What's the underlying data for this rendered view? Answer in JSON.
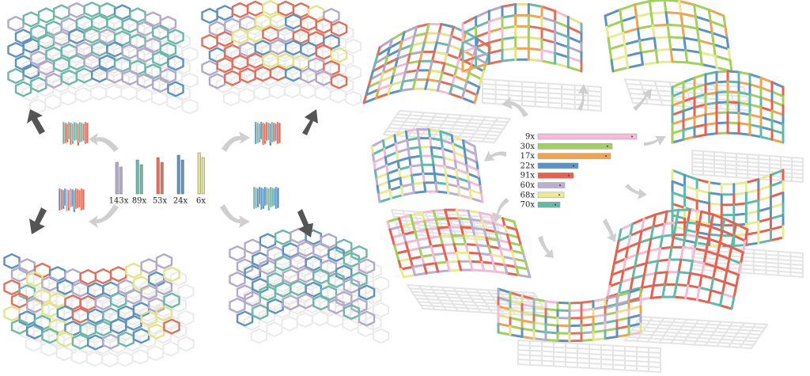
{
  "left_parts": [
    {
      "label": "143x",
      "color": "#b3aac9"
    },
    {
      "label": "89x",
      "color": "#6fb7a8"
    },
    {
      "label": "53x",
      "color": "#e0705e"
    },
    {
      "label": "24x",
      "color": "#5f92bd"
    },
    {
      "label": "6x",
      "color": "#e3e38e"
    }
  ],
  "right_parts": [
    {
      "label": "9x",
      "color": "#f2bcd9"
    },
    {
      "label": "30x",
      "color": "#a2cf5e"
    },
    {
      "label": "17x",
      "color": "#f0a452"
    },
    {
      "label": "22x",
      "color": "#5d93c2"
    },
    {
      "label": "91x",
      "color": "#e8604f"
    },
    {
      "label": "60x",
      "color": "#bcadd4"
    },
    {
      "label": "68x",
      "color": "#eaea95"
    },
    {
      "label": "70x",
      "color": "#62b9a8"
    }
  ]
}
